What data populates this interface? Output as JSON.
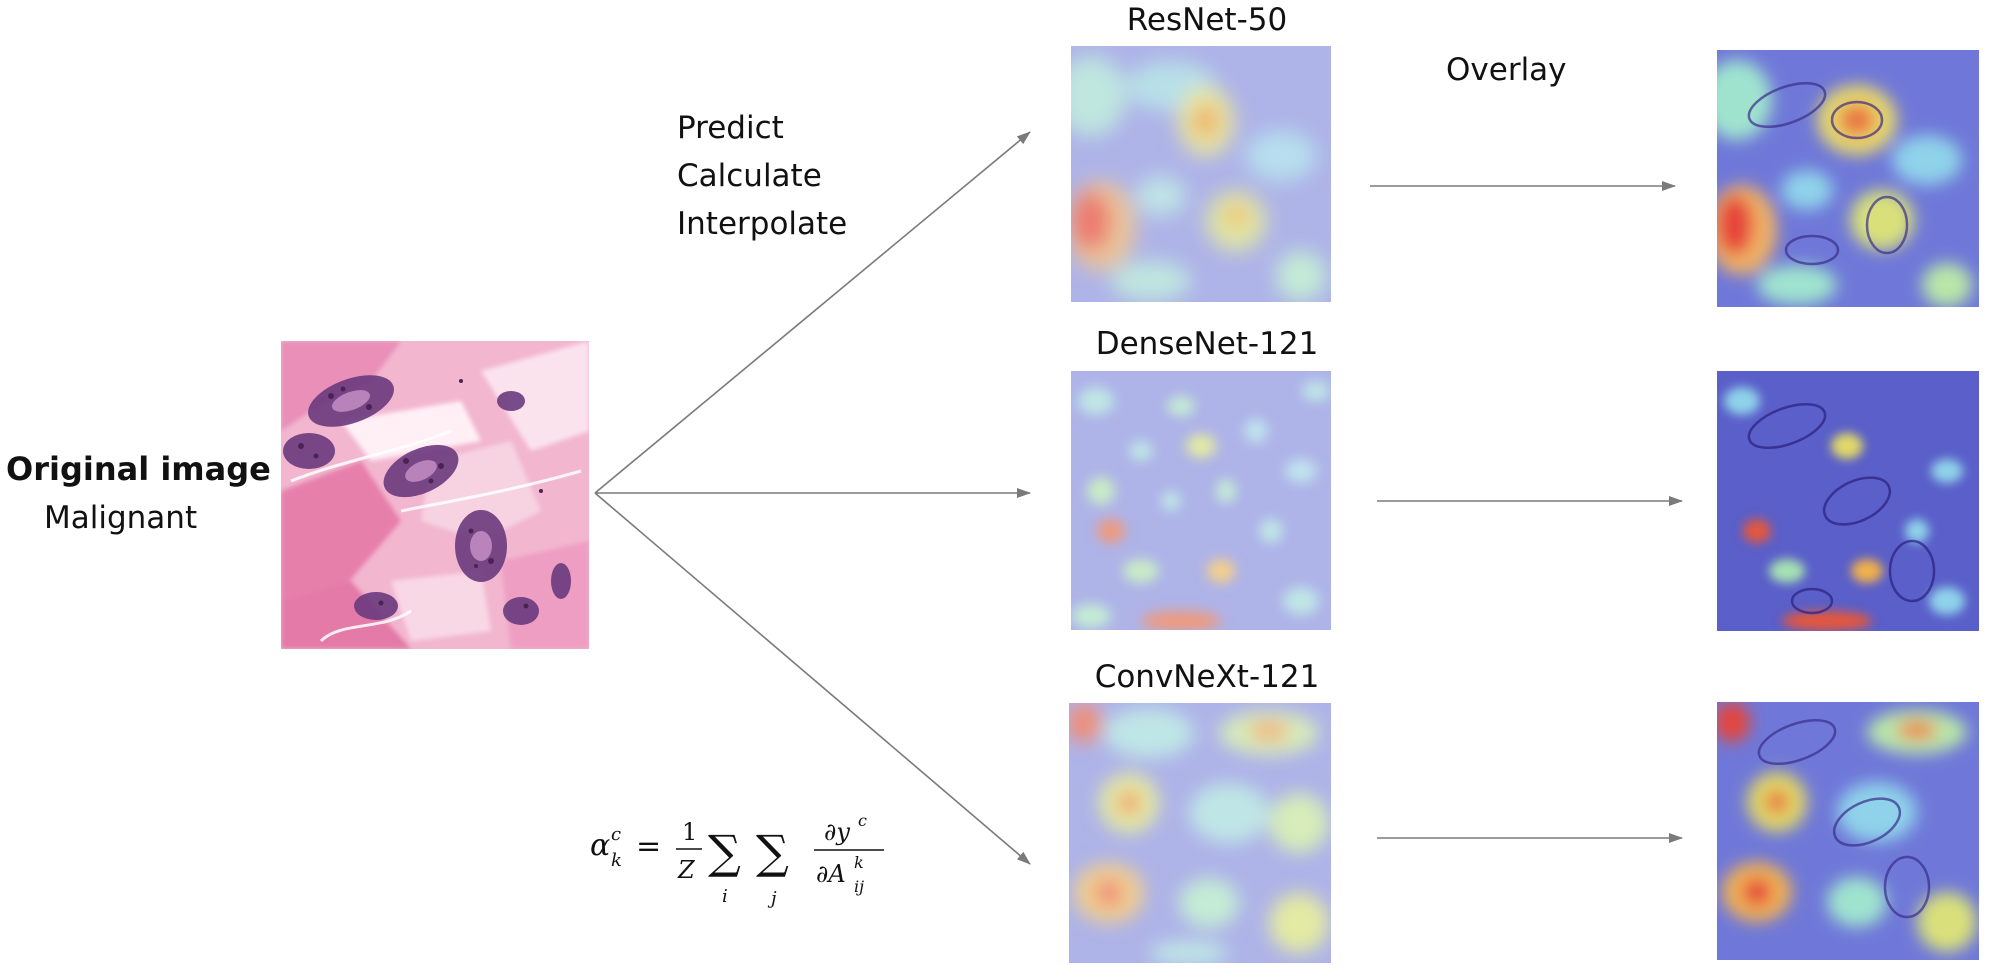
{
  "original": {
    "title": "Original image",
    "subtitle": "Malignant"
  },
  "steps": [
    "Predict",
    "Calculate",
    "Interpolate"
  ],
  "overlay_label": "Overlay",
  "models": [
    {
      "name": "ResNet-50"
    },
    {
      "name": "DenseNet-121"
    },
    {
      "name": "ConvNeXt-121"
    }
  ],
  "formula": {
    "lhs_symbol": "α",
    "lhs_sup": "c",
    "lhs_sub": "k",
    "equals": "=",
    "frac_num": "1",
    "frac_den": "Z",
    "sum_symbol": "∑",
    "sum1_index": "i",
    "sum2_index": "j",
    "deriv_num": "∂y",
    "deriv_num_sup": "c",
    "deriv_den": "∂A",
    "deriv_den_sup": "k",
    "deriv_den_sub": "ij"
  },
  "colors": {
    "arrow": "#7a7a7a",
    "heat_base": "#aeb3e8",
    "tissue_base": "#f2b6cf"
  }
}
